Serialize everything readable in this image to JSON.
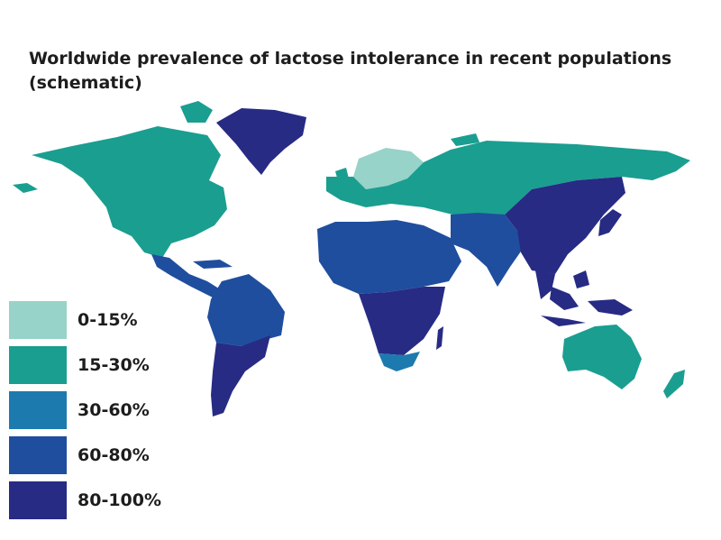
{
  "title": {
    "line1": "Worldwide prevalence of lactose intolerance in recent populations",
    "line2": "(schematic)"
  },
  "colors": {
    "c0_15": "#97d3c8",
    "c15_30": "#1a9e90",
    "c30_60": "#1d7aae",
    "c60_80": "#1f4e9e",
    "c80_100": "#272b84"
  },
  "legend": [
    {
      "label": "0-15%",
      "color": "#97d3c8"
    },
    {
      "label": "15-30%",
      "color": "#1a9e90"
    },
    {
      "label": "30-60%",
      "color": "#1d7aae"
    },
    {
      "label": "60-80%",
      "color": "#1f4e9e"
    },
    {
      "label": "80-100%",
      "color": "#272b84"
    }
  ],
  "regions": [
    {
      "name": "north-america",
      "category": "15-30%"
    },
    {
      "name": "greenland",
      "category": "80-100%"
    },
    {
      "name": "central-america",
      "category": "60-80%"
    },
    {
      "name": "northern-south-america",
      "category": "60-80%"
    },
    {
      "name": "southern-south-america",
      "category": "80-100%"
    },
    {
      "name": "northern-europe",
      "category": "0-15%"
    },
    {
      "name": "europe-russia",
      "category": "15-30%"
    },
    {
      "name": "north-africa-middle-east",
      "category": "60-80%"
    },
    {
      "name": "south-asia",
      "category": "60-80%"
    },
    {
      "name": "sub-saharan-africa",
      "category": "80-100%"
    },
    {
      "name": "southern-africa",
      "category": "30-60%"
    },
    {
      "name": "east-asia",
      "category": "80-100%"
    },
    {
      "name": "southeast-asia",
      "category": "80-100%"
    },
    {
      "name": "australia",
      "category": "15-30%"
    },
    {
      "name": "new-zealand",
      "category": "15-30%"
    }
  ]
}
